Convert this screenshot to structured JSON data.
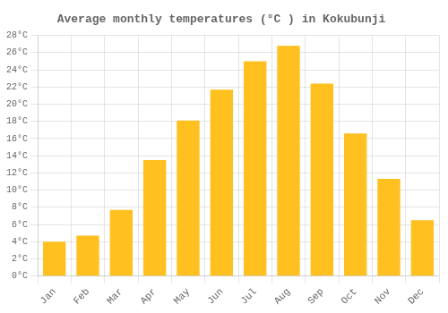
{
  "chart_data": {
    "type": "bar",
    "title": "Average monthly temperatures (°C ) in Kokubunji",
    "categories": [
      "Jan",
      "Feb",
      "Mar",
      "Apr",
      "May",
      "Jun",
      "Jul",
      "Aug",
      "Sep",
      "Oct",
      "Nov",
      "Dec"
    ],
    "values": [
      4.0,
      4.7,
      7.7,
      13.5,
      18.1,
      21.7,
      25.0,
      26.8,
      22.4,
      16.6,
      11.3,
      6.5
    ],
    "color": "#FFC020",
    "ylim": [
      0,
      28
    ],
    "yticks": [
      {
        "value": 0,
        "label": "0°C"
      },
      {
        "value": 2,
        "label": "2°C"
      },
      {
        "value": 4,
        "label": "4°C"
      },
      {
        "value": 6,
        "label": "6°C"
      },
      {
        "value": 8,
        "label": "8°C"
      },
      {
        "value": 10,
        "label": "10°C"
      },
      {
        "value": 12,
        "label": "12°C"
      },
      {
        "value": 14,
        "label": "14°C"
      },
      {
        "value": 16,
        "label": "16°C"
      },
      {
        "value": 18,
        "label": "18°C"
      },
      {
        "value": 20,
        "label": "20°C"
      },
      {
        "value": 22,
        "label": "22°C"
      },
      {
        "value": 24,
        "label": "24°C"
      },
      {
        "value": 26,
        "label": "26°C"
      },
      {
        "value": 28,
        "label": "28°C"
      }
    ],
    "grid": true
  }
}
